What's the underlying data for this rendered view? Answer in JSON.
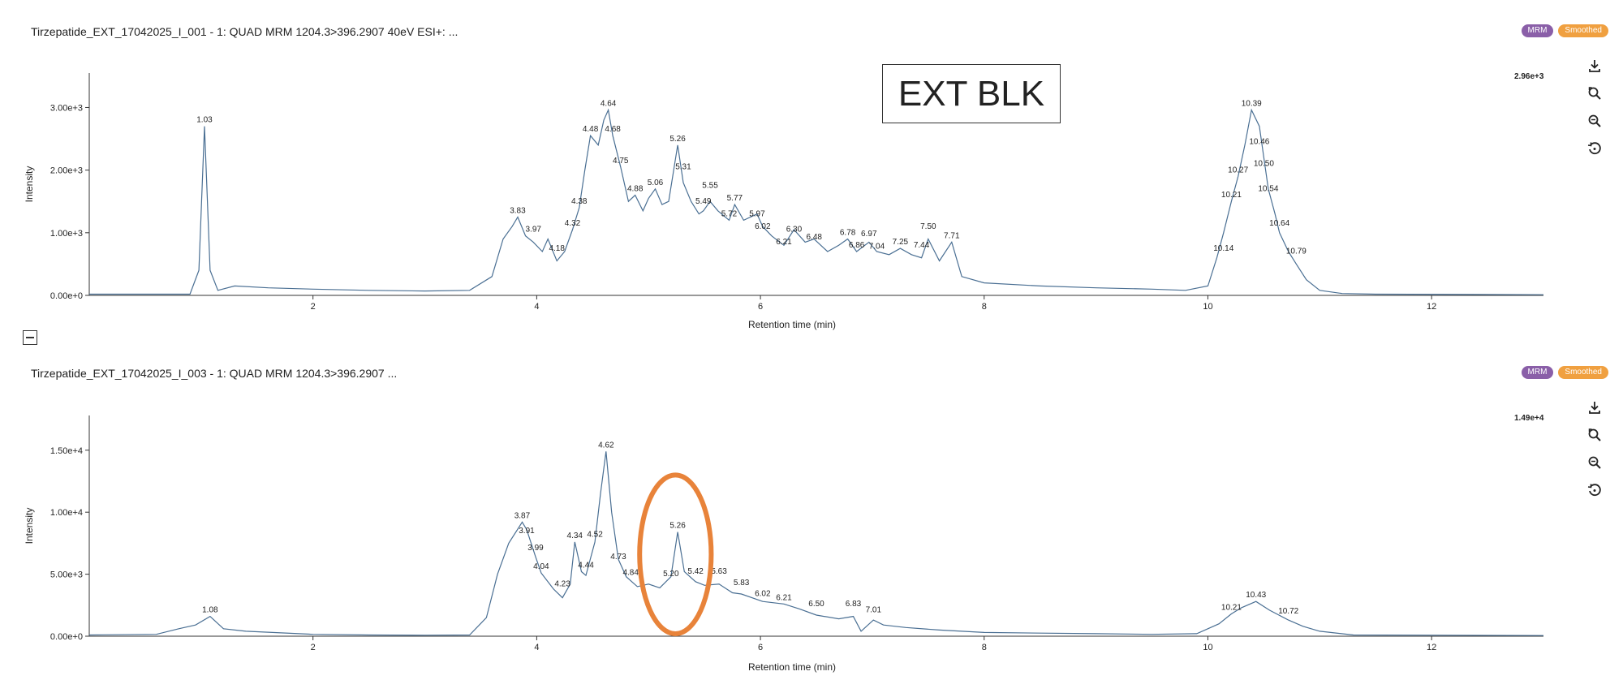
{
  "annotation": {
    "box_text": "EXT BLK"
  },
  "colors": {
    "trace": "#4a6f93",
    "highlight": "#e8833a",
    "mrm_badge": "#8a5fa8",
    "smoothed_badge": "#f0a040"
  },
  "icons": [
    "download-icon",
    "zoom-reset-icon",
    "zoom-out-icon",
    "reset-icon",
    "collapse-icon"
  ],
  "panels": [
    {
      "title": "Tirzepatide_EXT_17042025_I_001 - 1: QUAD MRM 1204.3>396.2907 40eV ESI+: ...",
      "badges": [
        "MRM",
        "Smoothed"
      ],
      "max_label": "2.96e+3"
    },
    {
      "title": "Tirzepatide_EXT_17042025_I_003 - 1: QUAD MRM 1204.3>396.2907 ...",
      "badges": [
        "MRM",
        "Smoothed"
      ],
      "max_label": "1.49e+4"
    }
  ],
  "chart_data": [
    {
      "type": "line",
      "title": "Tirzepatide_EXT_17042025_I_001 - 1: QUAD MRM 1204.3>396.2907 40eV ESI+: ...",
      "xlabel": "Retention time (min)",
      "ylabel": "Intensity",
      "xlim": [
        0,
        13
      ],
      "ylim": [
        0,
        3550
      ],
      "x_ticks": [
        2,
        4,
        6,
        8,
        10,
        12
      ],
      "y_ticks": [
        0,
        1000,
        2000,
        3000
      ],
      "y_tick_labels": [
        "0.00e+0",
        "1.00e+3",
        "2.00e+3",
        "3.00e+3"
      ],
      "grid": false,
      "series": [
        {
          "x": [
            0.0,
            0.9,
            0.98,
            1.03,
            1.08,
            1.15,
            1.3,
            1.6,
            2.0,
            2.5,
            3.0,
            3.4,
            3.6,
            3.7,
            3.78,
            3.83,
            3.9,
            3.97,
            4.05,
            4.1,
            4.18,
            4.25,
            4.32,
            4.38,
            4.43,
            4.48,
            4.55,
            4.6,
            4.64,
            4.68,
            4.75,
            4.82,
            4.88,
            4.95,
            5.0,
            5.06,
            5.12,
            5.18,
            5.26,
            5.31,
            5.38,
            5.45,
            5.49,
            5.55,
            5.62,
            5.72,
            5.77,
            5.85,
            5.97,
            6.02,
            6.1,
            6.21,
            6.3,
            6.4,
            6.48,
            6.6,
            6.7,
            6.78,
            6.86,
            6.97,
            7.04,
            7.15,
            7.25,
            7.35,
            7.44,
            7.5,
            7.6,
            7.71,
            7.8,
            8.0,
            8.5,
            9.0,
            9.5,
            9.8,
            10.0,
            10.08,
            10.14,
            10.21,
            10.27,
            10.33,
            10.39,
            10.46,
            10.5,
            10.54,
            10.6,
            10.64,
            10.72,
            10.79,
            10.88,
            11.0,
            11.2,
            11.5,
            13.0
          ],
          "y": [
            20,
            20,
            400,
            2700,
            400,
            80,
            150,
            120,
            100,
            80,
            70,
            80,
            300,
            900,
            1100,
            1250,
            950,
            850,
            700,
            900,
            550,
            700,
            1050,
            1400,
            2000,
            2550,
            2400,
            2800,
            2960,
            2550,
            2050,
            1500,
            1600,
            1350,
            1550,
            1700,
            1450,
            1500,
            2400,
            1800,
            1500,
            1300,
            1350,
            1500,
            1350,
            1200,
            1450,
            1200,
            1300,
            1100,
            950,
            800,
            1050,
            850,
            900,
            700,
            800,
            900,
            700,
            850,
            700,
            650,
            750,
            650,
            600,
            900,
            550,
            850,
            300,
            200,
            150,
            120,
            100,
            80,
            150,
            600,
            1000,
            1500,
            1900,
            2400,
            2960,
            2700,
            2200,
            1700,
            1300,
            1000,
            700,
            500,
            250,
            80,
            30,
            20,
            10
          ]
        }
      ],
      "peak_labels": [
        {
          "x": 1.03,
          "y": 2700,
          "text": "1.03"
        },
        {
          "x": 3.83,
          "y": 1250,
          "text": "3.83"
        },
        {
          "x": 3.97,
          "y": 950,
          "text": "3.97"
        },
        {
          "x": 4.18,
          "y": 650,
          "text": "4.18"
        },
        {
          "x": 4.32,
          "y": 1050,
          "text": "4.32"
        },
        {
          "x": 4.38,
          "y": 1400,
          "text": "4.38"
        },
        {
          "x": 4.48,
          "y": 2550,
          "text": "4.48"
        },
        {
          "x": 4.64,
          "y": 2960,
          "text": "4.64"
        },
        {
          "x": 4.68,
          "y": 2550,
          "text": "4.68"
        },
        {
          "x": 4.75,
          "y": 2050,
          "text": "4.75"
        },
        {
          "x": 4.88,
          "y": 1600,
          "text": "4.88"
        },
        {
          "x": 5.06,
          "y": 1700,
          "text": "5.06"
        },
        {
          "x": 5.26,
          "y": 2400,
          "text": "5.26"
        },
        {
          "x": 5.31,
          "y": 1950,
          "text": "5.31"
        },
        {
          "x": 5.49,
          "y": 1400,
          "text": "5.49"
        },
        {
          "x": 5.55,
          "y": 1650,
          "text": "5.55"
        },
        {
          "x": 5.72,
          "y": 1200,
          "text": "5.72"
        },
        {
          "x": 5.77,
          "y": 1450,
          "text": "5.77"
        },
        {
          "x": 5.97,
          "y": 1200,
          "text": "5.97"
        },
        {
          "x": 6.02,
          "y": 1000,
          "text": "6.02"
        },
        {
          "x": 6.21,
          "y": 750,
          "text": "6.21"
        },
        {
          "x": 6.3,
          "y": 950,
          "text": "6.30"
        },
        {
          "x": 6.48,
          "y": 830,
          "text": "6.48"
        },
        {
          "x": 6.78,
          "y": 900,
          "text": "6.78"
        },
        {
          "x": 6.86,
          "y": 700,
          "text": "6.86"
        },
        {
          "x": 6.97,
          "y": 880,
          "text": "6.97"
        },
        {
          "x": 7.04,
          "y": 680,
          "text": "7.04"
        },
        {
          "x": 7.25,
          "y": 750,
          "text": "7.25"
        },
        {
          "x": 7.44,
          "y": 700,
          "text": "7.44"
        },
        {
          "x": 7.5,
          "y": 1000,
          "text": "7.50"
        },
        {
          "x": 7.71,
          "y": 850,
          "text": "7.71"
        },
        {
          "x": 10.14,
          "y": 650,
          "text": "10.14"
        },
        {
          "x": 10.21,
          "y": 1500,
          "text": "10.21"
        },
        {
          "x": 10.27,
          "y": 1900,
          "text": "10.27"
        },
        {
          "x": 10.39,
          "y": 2960,
          "text": "10.39"
        },
        {
          "x": 10.46,
          "y": 2350,
          "text": "10.46"
        },
        {
          "x": 10.5,
          "y": 2000,
          "text": "10.50"
        },
        {
          "x": 10.54,
          "y": 1600,
          "text": "10.54"
        },
        {
          "x": 10.64,
          "y": 1050,
          "text": "10.64"
        },
        {
          "x": 10.79,
          "y": 600,
          "text": "10.79"
        }
      ]
    },
    {
      "type": "line",
      "title": "Tirzepatide_EXT_17042025_I_003 - 1: QUAD MRM 1204.3>396.2907 ...",
      "xlabel": "Retention time (min)",
      "ylabel": "Intensity",
      "xlim": [
        0,
        13
      ],
      "ylim": [
        0,
        17800
      ],
      "x_ticks": [
        2,
        4,
        6,
        8,
        10,
        12
      ],
      "y_ticks": [
        0,
        5000,
        10000,
        15000
      ],
      "y_tick_labels": [
        "0.00e+0",
        "5.00e+3",
        "1.00e+4",
        "1.50e+4"
      ],
      "grid": false,
      "series": [
        {
          "x": [
            0.0,
            0.6,
            0.8,
            0.95,
            1.08,
            1.2,
            1.4,
            2.0,
            2.5,
            3.0,
            3.4,
            3.55,
            3.65,
            3.75,
            3.87,
            3.91,
            3.99,
            4.04,
            4.15,
            4.23,
            4.3,
            4.34,
            4.4,
            4.44,
            4.52,
            4.57,
            4.62,
            4.67,
            4.73,
            4.8,
            4.9,
            5.0,
            5.1,
            5.2,
            5.26,
            5.32,
            5.42,
            5.5,
            5.63,
            5.75,
            5.83,
            6.02,
            6.21,
            6.35,
            6.5,
            6.7,
            6.83,
            6.9,
            7.01,
            7.1,
            7.3,
            7.6,
            8.0,
            8.5,
            9.0,
            9.5,
            9.9,
            10.1,
            10.21,
            10.3,
            10.43,
            10.55,
            10.72,
            10.85,
            11.0,
            11.3,
            13.0
          ],
          "y": [
            100,
            150,
            600,
            900,
            1600,
            600,
            400,
            150,
            100,
            80,
            100,
            1500,
            5000,
            7500,
            9200,
            8600,
            6400,
            5100,
            3800,
            3100,
            4200,
            7600,
            5200,
            4900,
            7600,
            11500,
            14900,
            10000,
            6200,
            4800,
            4000,
            4200,
            3900,
            4800,
            8400,
            5200,
            4400,
            4100,
            4200,
            3500,
            3400,
            2800,
            2600,
            2200,
            1700,
            1400,
            1600,
            400,
            1300,
            900,
            700,
            500,
            300,
            250,
            200,
            150,
            200,
            1000,
            1800,
            2300,
            2800,
            2100,
            1300,
            800,
            400,
            100,
            50
          ]
        }
      ],
      "highlight_ellipse": {
        "cx": 5.24,
        "cy": 6600,
        "rx": 0.32,
        "ry": 6400
      },
      "peak_labels": [
        {
          "x": 1.08,
          "y": 1600,
          "text": "1.08"
        },
        {
          "x": 3.87,
          "y": 9200,
          "text": "3.87"
        },
        {
          "x": 3.91,
          "y": 8000,
          "text": "3.91"
        },
        {
          "x": 3.99,
          "y": 6600,
          "text": "3.99"
        },
        {
          "x": 4.04,
          "y": 5100,
          "text": "4.04"
        },
        {
          "x": 4.23,
          "y": 3700,
          "text": "4.23"
        },
        {
          "x": 4.34,
          "y": 7600,
          "text": "4.34"
        },
        {
          "x": 4.44,
          "y": 5200,
          "text": "4.44"
        },
        {
          "x": 4.52,
          "y": 7700,
          "text": "4.52"
        },
        {
          "x": 4.62,
          "y": 14900,
          "text": "4.62"
        },
        {
          "x": 4.73,
          "y": 5900,
          "text": "4.73"
        },
        {
          "x": 4.84,
          "y": 4600,
          "text": "4.84"
        },
        {
          "x": 5.2,
          "y": 4500,
          "text": "5.20"
        },
        {
          "x": 5.26,
          "y": 8400,
          "text": "5.26"
        },
        {
          "x": 5.42,
          "y": 4700,
          "text": "5.42"
        },
        {
          "x": 5.63,
          "y": 4700,
          "text": "5.63"
        },
        {
          "x": 5.83,
          "y": 3800,
          "text": "5.83"
        },
        {
          "x": 6.02,
          "y": 2900,
          "text": "6.02"
        },
        {
          "x": 6.21,
          "y": 2600,
          "text": "6.21"
        },
        {
          "x": 6.5,
          "y": 2100,
          "text": "6.50"
        },
        {
          "x": 6.83,
          "y": 2100,
          "text": "6.83"
        },
        {
          "x": 7.01,
          "y": 1600,
          "text": "7.01"
        },
        {
          "x": 10.21,
          "y": 1800,
          "text": "10.21"
        },
        {
          "x": 10.43,
          "y": 2800,
          "text": "10.43"
        },
        {
          "x": 10.72,
          "y": 1500,
          "text": "10.72"
        }
      ]
    }
  ]
}
